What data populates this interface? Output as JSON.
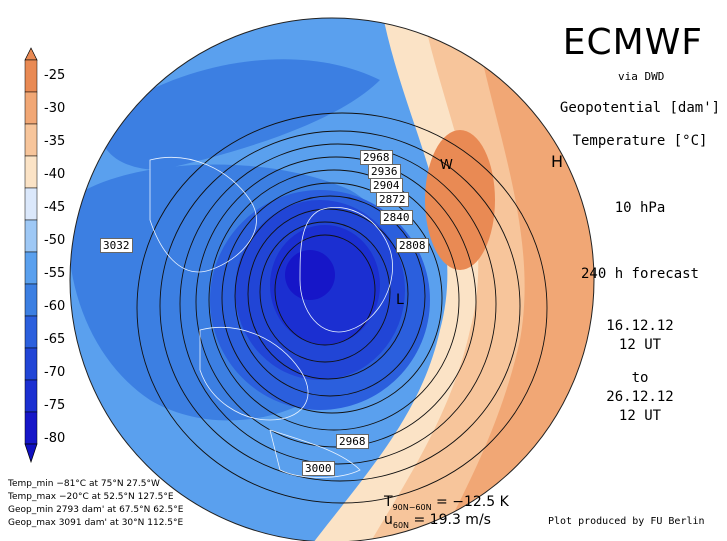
{
  "header": {
    "title": "ECMWF",
    "source": "via DWD",
    "field_geopotential": "Geopotential [dam']",
    "field_temperature": "Temperature [°C]",
    "level": "10 hPa",
    "forecast": "240 h forecast",
    "init_date": "16.12.12",
    "init_time": "12 UT",
    "to_label": "to",
    "valid_date": "26.12.12",
    "valid_time": "12 UT"
  },
  "colorbar": {
    "labels": [
      "-25",
      "-30",
      "-35",
      "-40",
      "-45",
      "-50",
      "-55",
      "-60",
      "-65",
      "-70",
      "-75",
      "-80"
    ],
    "colors": [
      "#e98a54",
      "#f1a775",
      "#f7c59b",
      "#fbe3c6",
      "#dbe8fb",
      "#9ec8f5",
      "#5aa0ee",
      "#3c7fe2",
      "#2b5fdd",
      "#2145d6",
      "#1b2fd1",
      "#1616c8"
    ]
  },
  "contours": {
    "labels": [
      "2968",
      "2936",
      "2904",
      "2872",
      "2840",
      "2808",
      "3032",
      "2968",
      "3000"
    ],
    "markers": [
      "H",
      "L",
      "W"
    ]
  },
  "stats": {
    "temp_min": "Temp_min −81°C at 75°N 27.5°W",
    "temp_max": "Temp_max −20°C at 52.5°N 127.5°E",
    "geop_min": "Geop_min 2793 dam' at 67.5°N 62.5°E",
    "geop_max": "Geop_max 3091 dam' at 30°N 112.5°E"
  },
  "diagnostics": {
    "t_symbol": "T",
    "t_sub": "90N−60N",
    "t_value": "= −12.5 K",
    "u_symbol": "u",
    "u_sub": "60N",
    "u_value": "= 19.3 m/s"
  },
  "credit": "Plot produced by FU Berlin"
}
